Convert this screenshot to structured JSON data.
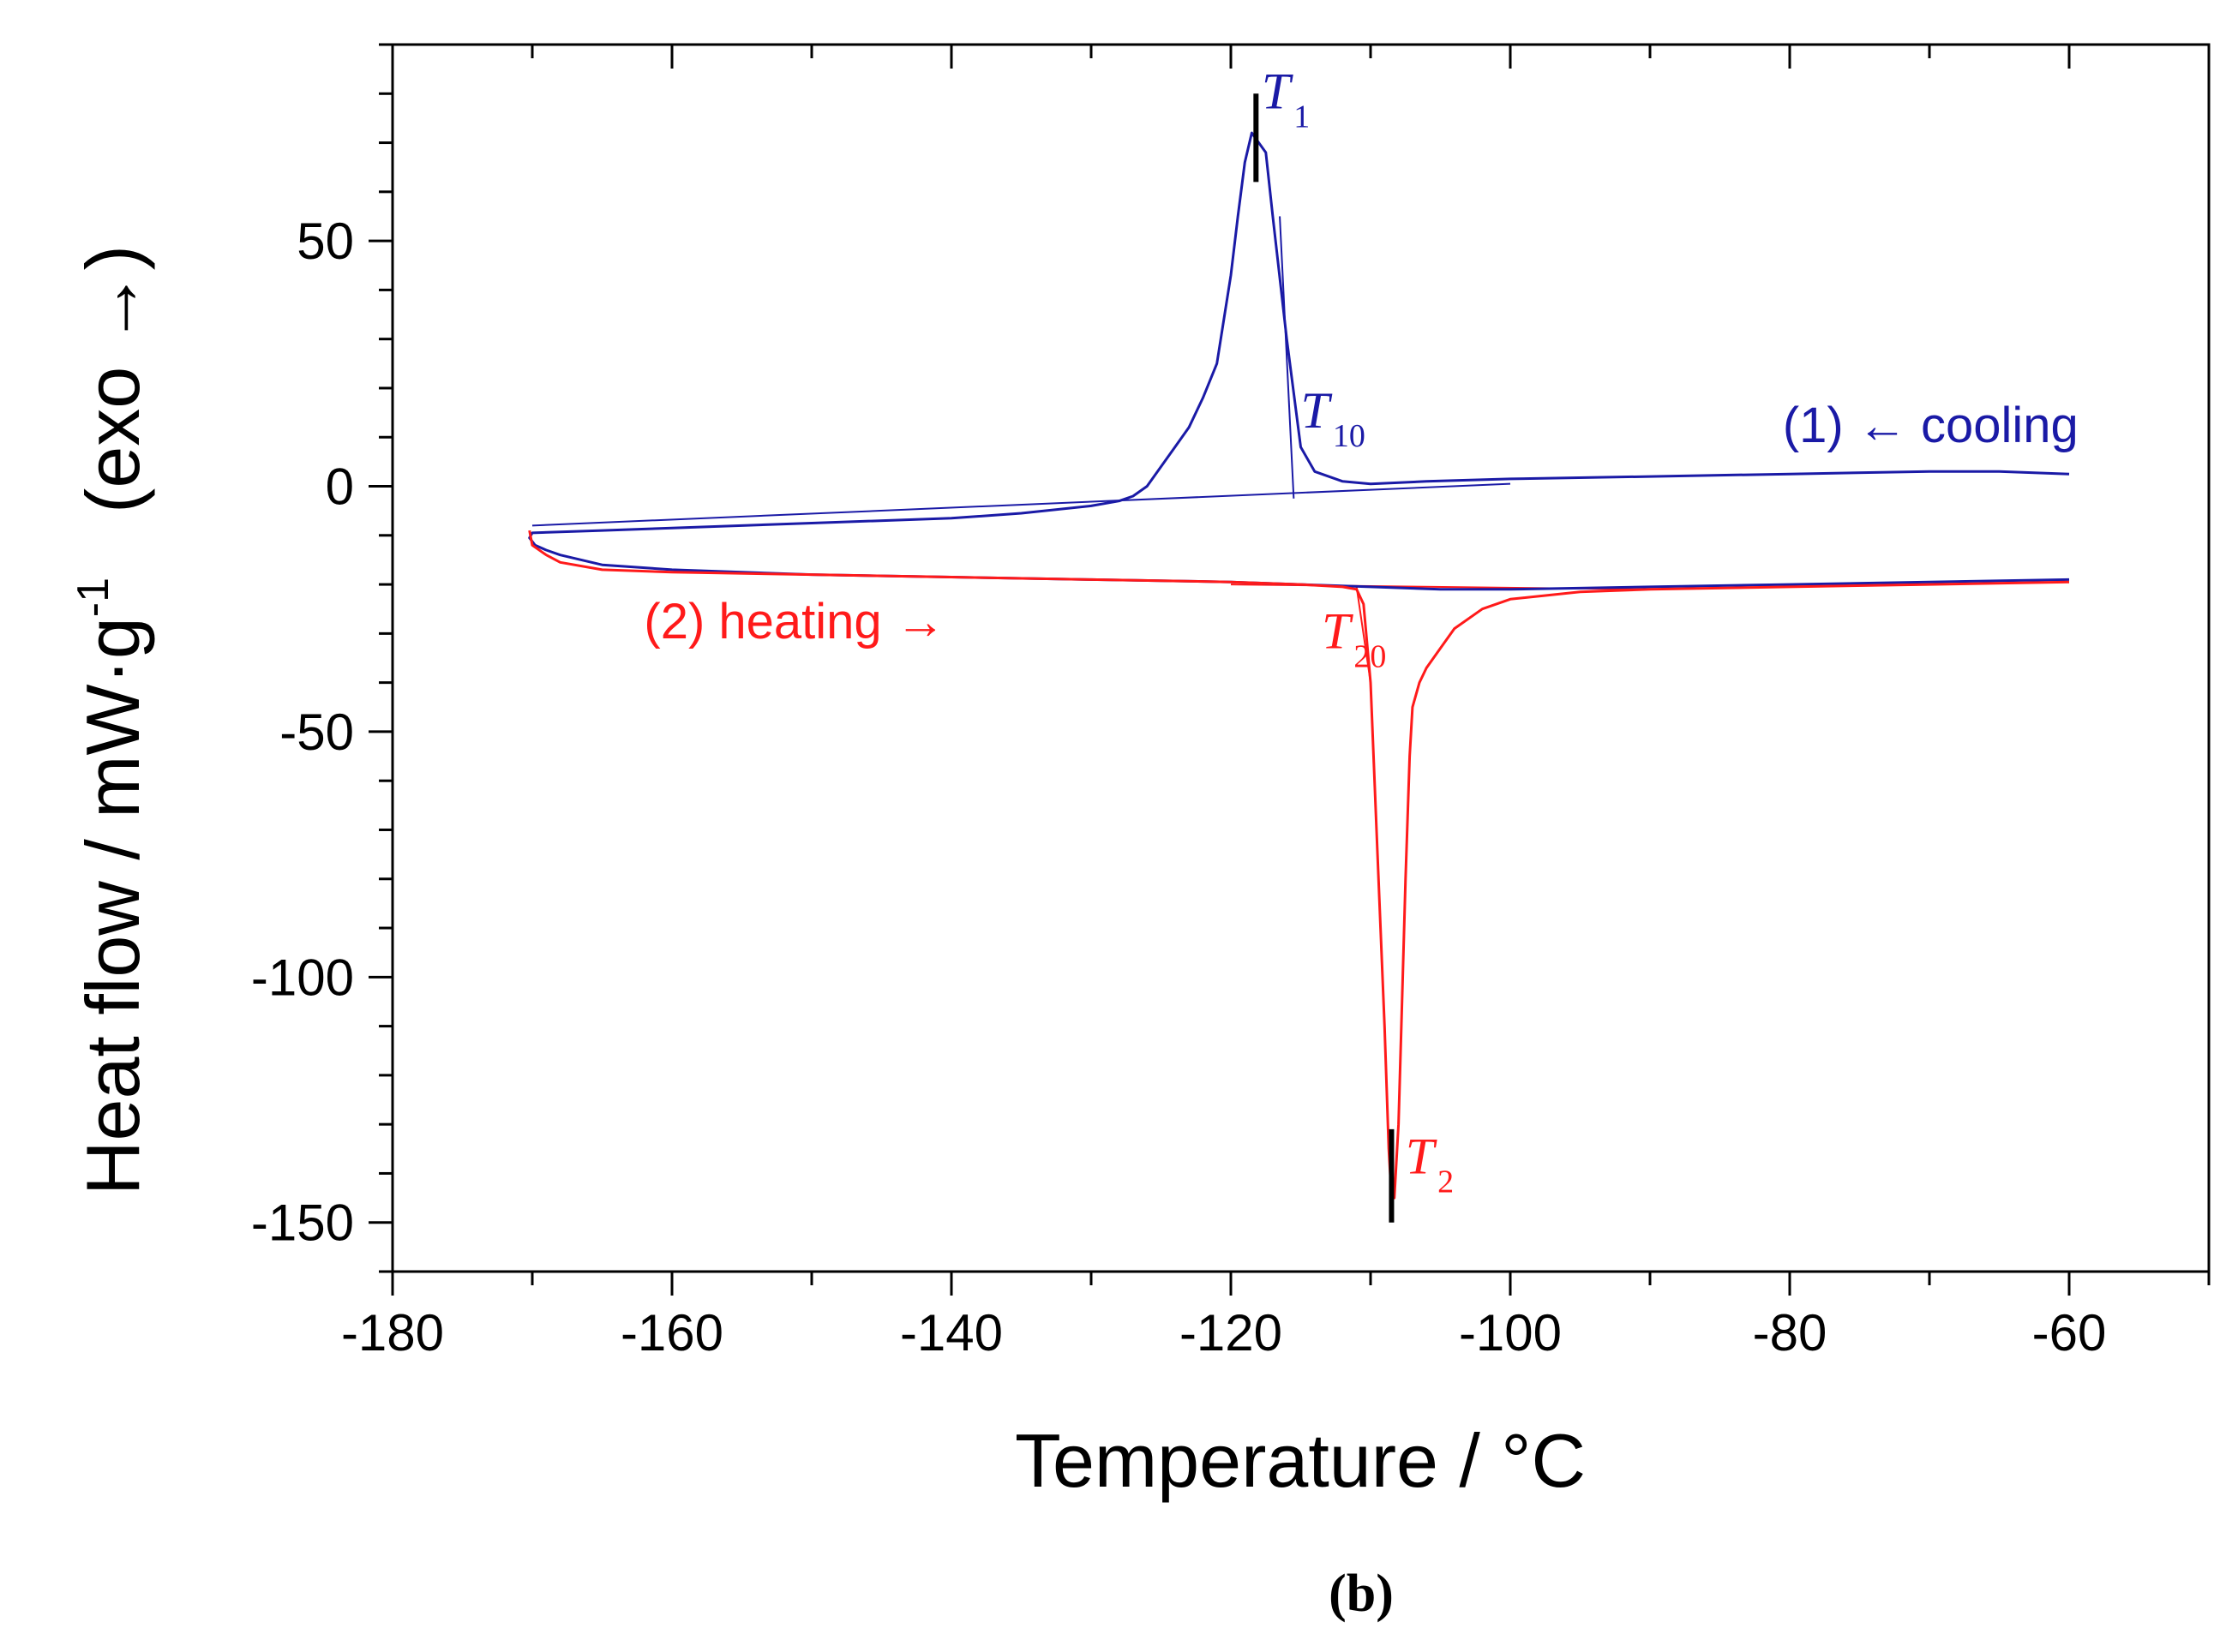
{
  "chart_data": {
    "type": "line",
    "xlabel": "Temperature / °C",
    "ylabel_main": "Heat flow / mW·g",
    "ylabel_sup": "-1",
    "ylabel_note": "(exo →)",
    "xlim": [
      -180,
      -50
    ],
    "ylim": [
      -160,
      90
    ],
    "x_ticks": [
      -180,
      -160,
      -140,
      -120,
      -100,
      -80,
      -60
    ],
    "y_ticks": [
      -150,
      -100,
      -50,
      0,
      50
    ],
    "x_tick_labels": [
      "-180",
      "-160",
      "-140",
      "-120",
      "-100",
      "-80",
      "-60"
    ],
    "y_tick_labels": [
      "-150",
      "-100",
      "-50",
      "0",
      "50"
    ],
    "colors": {
      "cooling": "#1a1aa6",
      "heating": "#ff1a1a",
      "marker": "#000000"
    },
    "series": [
      {
        "name": "cooling",
        "label": "(1) ← cooling",
        "color": "#1a1aa6",
        "x": [
          -60,
          -65,
          -70,
          -80,
          -90,
          -100,
          -106,
          -110,
          -112,
          -114,
          -115,
          -116,
          -117,
          -117.5,
          -118,
          -118.5,
          -119,
          -119.5,
          -120,
          -121,
          -122,
          -123,
          -124,
          -125,
          -126,
          -127,
          -128,
          -130,
          -135,
          -140,
          -150,
          -160,
          -165,
          -170,
          -170.2,
          -169.8,
          -169,
          -168,
          -165,
          -160,
          -150,
          -140,
          -130,
          -120,
          -115,
          -110,
          -105,
          -100,
          -90,
          -80,
          -70,
          -60
        ],
        "y": [
          2.5,
          3,
          3,
          2.5,
          2,
          1.5,
          1,
          0.5,
          1,
          3,
          8,
          30,
          55,
          68,
          70,
          72,
          66,
          55,
          43,
          25,
          18,
          12,
          8,
          4,
          0,
          -2,
          -3,
          -4,
          -5.5,
          -6.5,
          -7.5,
          -8.5,
          -9,
          -9.5,
          -10.5,
          -12,
          -13,
          -14,
          -16,
          -17,
          -18,
          -18.5,
          -19,
          -19.5,
          -20,
          -20.5,
          -21,
          -21,
          -20.5,
          -20,
          -19.5,
          -19
        ]
      },
      {
        "name": "heating",
        "label": "(2) heating →",
        "color": "#ff1a1a",
        "x": [
          -170.2,
          -170,
          -169,
          -168,
          -165,
          -160,
          -150,
          -140,
          -130,
          -120,
          -115,
          -112,
          -111,
          -110.5,
          -110,
          -109.5,
          -109,
          -108.7,
          -108.5,
          -108.3,
          -108,
          -107.8,
          -107.5,
          -107.2,
          -107,
          -106.5,
          -106,
          -105,
          -104,
          -102,
          -100,
          -95,
          -90,
          -80,
          -70,
          -60
        ],
        "y": [
          -9,
          -12,
          -14,
          -15.5,
          -17,
          -17.5,
          -18,
          -18.5,
          -19,
          -19.5,
          -20,
          -20.5,
          -21,
          -24,
          -40,
          -75,
          -110,
          -135,
          -145,
          -145,
          -130,
          -110,
          -80,
          -55,
          -45,
          -40,
          -37,
          -33,
          -29,
          -25,
          -23,
          -21.5,
          -21,
          -20.5,
          -20,
          -19.5
        ]
      }
    ],
    "baselines": [
      {
        "series": "cooling",
        "x": [
          -170,
          -100
        ],
        "y": [
          -8,
          0.5
        ]
      },
      {
        "series": "heating",
        "x": [
          -120,
          -90
        ],
        "y": [
          -20,
          -21
        ]
      }
    ],
    "onset_lines": [
      {
        "series": "cooling",
        "x": [
          -116.5,
          -115.5
        ],
        "y": [
          55,
          -2.5
        ]
      },
      {
        "series": "heating",
        "x": [
          -111,
          -110
        ],
        "y": [
          -20.5,
          -40
        ]
      }
    ],
    "markers": [
      {
        "x": -118.2,
        "y1": 62,
        "y2": 80
      },
      {
        "x": -108.5,
        "y1": -131,
        "y2": -150
      }
    ],
    "annotations": [
      {
        "key": "T1",
        "text": "T",
        "sub": "1",
        "color": "#1a1aa6",
        "x": -117.8,
        "y": 77
      },
      {
        "key": "T10",
        "text": "T",
        "sub": "10",
        "color": "#1a1aa6",
        "x": -115,
        "y": 12
      },
      {
        "key": "T20",
        "text": "T",
        "sub": "20",
        "color": "#ff1a1a",
        "x": -113.5,
        "y": -33
      },
      {
        "key": "T2",
        "text": "T",
        "sub": "2",
        "color": "#ff1a1a",
        "x": -107.5,
        "y": -140
      }
    ],
    "series_label_positions": [
      {
        "series": "cooling",
        "x": -80.5,
        "y": 9,
        "anchor": "start"
      },
      {
        "series": "heating",
        "x": -162,
        "y": -31,
        "anchor": "start"
      }
    ],
    "panel_label": "(b)"
  }
}
